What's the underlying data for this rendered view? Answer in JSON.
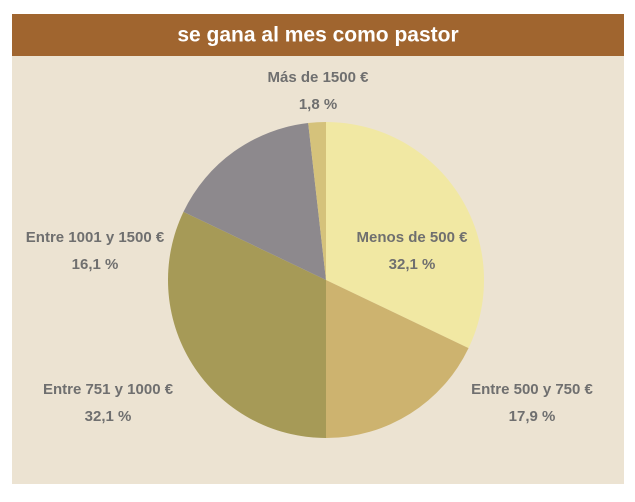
{
  "chart_data": {
    "type": "pie",
    "title": "se gana al mes como pastor",
    "categories": [
      "Menos de 500 €",
      "Entre 500 y 750 €",
      "Entre 751 y 1000 €",
      "Entre 1001 y 1500 €",
      "Más de 1500 €"
    ],
    "values": [
      32.1,
      17.9,
      32.1,
      16.1,
      1.8
    ],
    "value_labels": [
      "32,1 %",
      "17,9 %",
      "32,1 %",
      "16,1 %",
      "1,8 %"
    ],
    "colors": [
      "#f1e8a3",
      "#cdb36f",
      "#a69a57",
      "#8d898d",
      "#d5c27b"
    ]
  }
}
